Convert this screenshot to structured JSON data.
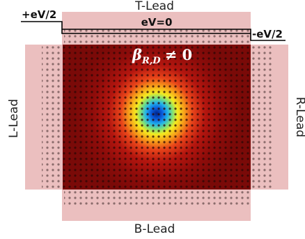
{
  "leads": {
    "top": "T-Lead",
    "bottom": "B-Lead",
    "left": "L-Lead",
    "right": "R-Lead"
  },
  "voltages": {
    "left_bias": "+eV/2",
    "center_bias": "eV=0",
    "right_bias": "-eV/2"
  },
  "annotation": {
    "symbol": "β",
    "subscript": "R,D",
    "relation": "≠ 0"
  },
  "colors": {
    "lead_fill": "#ebbfbf",
    "lead_dot": "#8a6b6b",
    "scatter_base": "#7a0a08",
    "scatter_dot": "#2a0504",
    "wire": "#000000"
  }
}
